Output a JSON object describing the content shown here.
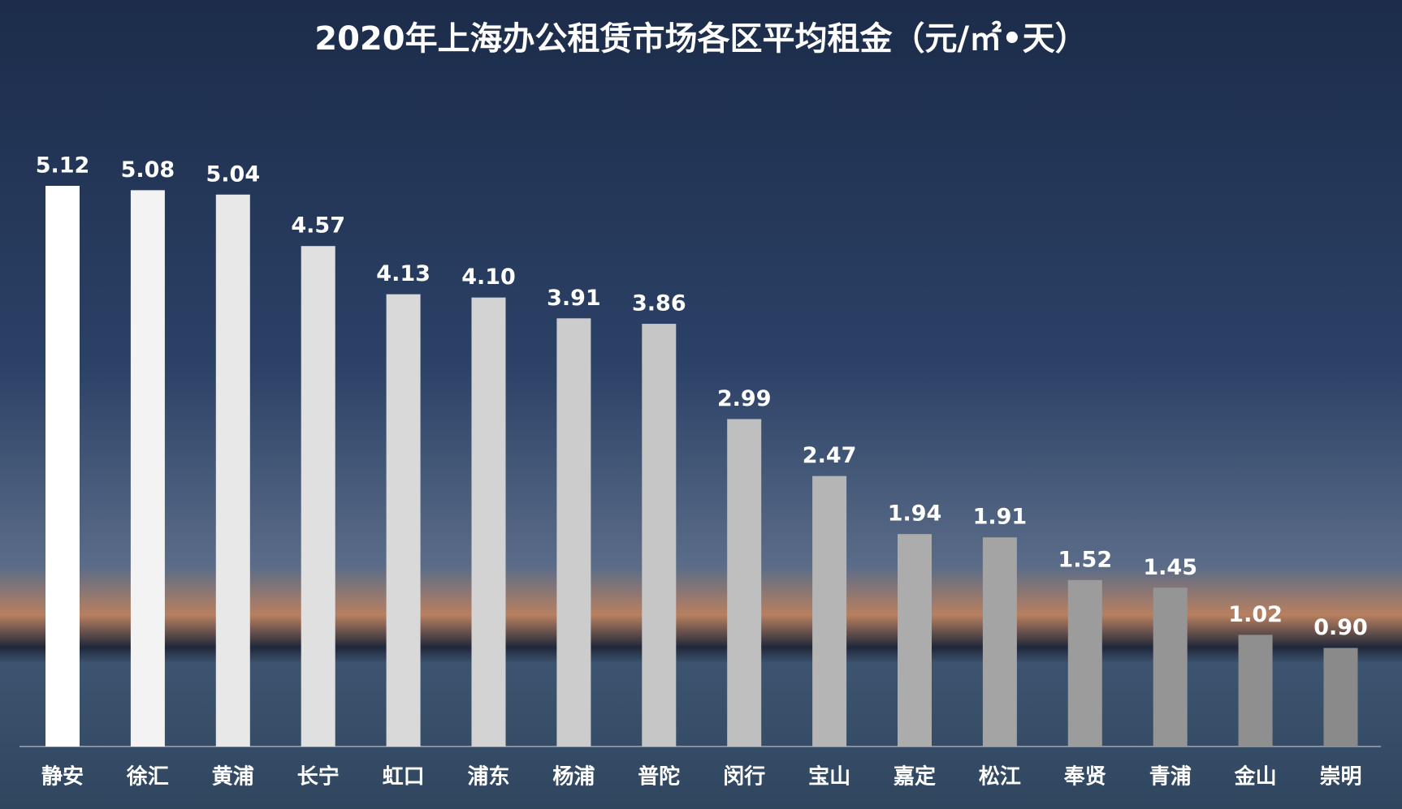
{
  "chart_data": {
    "type": "bar",
    "title": "2020年上海办公租赁市场各区平均租金（元/㎡•天）",
    "categories": [
      "静安",
      "徐汇",
      "黄浦",
      "长宁",
      "虹口",
      "浦东",
      "杨浦",
      "普陀",
      "闵行",
      "宝山",
      "嘉定",
      "松江",
      "奉贤",
      "青浦",
      "金山",
      "崇明"
    ],
    "values": [
      5.12,
      5.08,
      5.04,
      4.57,
      4.13,
      4.1,
      3.91,
      3.86,
      2.99,
      2.47,
      1.94,
      1.91,
      1.52,
      1.45,
      1.02,
      0.9
    ],
    "value_labels": [
      "5.12",
      "5.08",
      "5.04",
      "4.57",
      "4.13",
      "4.10",
      "3.91",
      "3.86",
      "2.99",
      "2.47",
      "1.94",
      "1.91",
      "1.52",
      "1.45",
      "1.02",
      "0.90"
    ],
    "colors": [
      "#ffffff",
      "#f3f3f3",
      "#e8e8e8",
      "#e0e0e0",
      "#d9d9d9",
      "#d3d3d3",
      "#cccccc",
      "#c6c6c6",
      "#bfbfbf",
      "#b5b5b5",
      "#acacac",
      "#a4a4a4",
      "#9c9c9c",
      "#959595",
      "#8f8f8f",
      "#8a8a8a"
    ]
  }
}
